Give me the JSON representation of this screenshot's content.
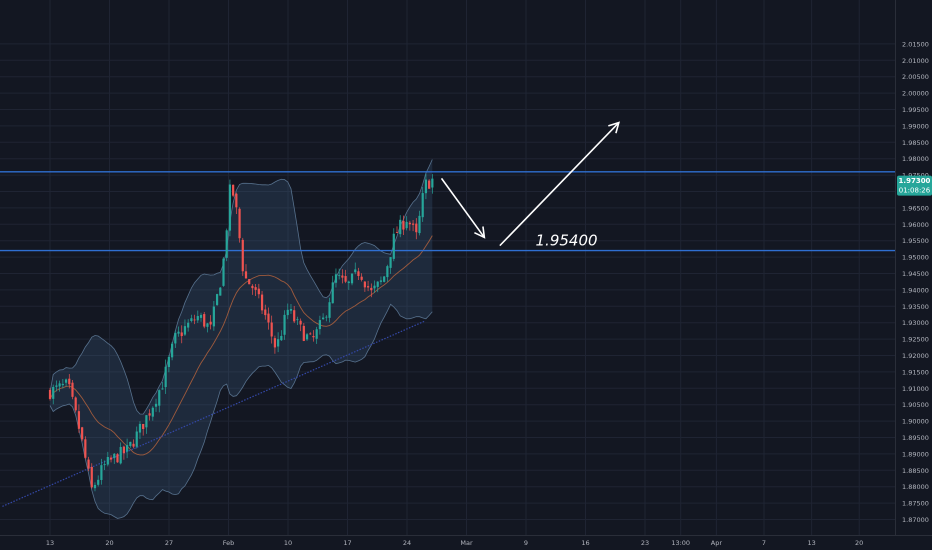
{
  "colors": {
    "background": "#131722",
    "grid": "#1f2433",
    "up": "#26a69a",
    "down": "#ef5350",
    "hline": "#2f6fd1",
    "band_fill": "#3d5f80",
    "band_line": "#57718d",
    "ma": "#b5633c",
    "trend": "#3448a8",
    "arrow": "#ffffff",
    "axis_text": "#b2b5be",
    "price_tag": "#26a69a",
    "price_tag_dark": "#1a8a7f"
  },
  "chart_data": {
    "type": "candlestick",
    "y_ticks": [
      "1.87000",
      "1.87500",
      "1.88000",
      "1.88500",
      "1.89000",
      "1.89500",
      "1.90000",
      "1.90500",
      "1.91000",
      "1.91500",
      "1.92000",
      "1.92500",
      "1.93000",
      "1.93500",
      "1.94000",
      "1.94500",
      "1.95000",
      "1.95500",
      "1.96000",
      "1.96500",
      "1.97000",
      "1.97500",
      "1.98000",
      "1.98500",
      "1.99000",
      "1.99500",
      "2.00000",
      "2.00500",
      "2.01000",
      "2.01500"
    ],
    "y_range": [
      1.865,
      2.018
    ],
    "x_ticks": [
      {
        "label": "13",
        "slot": 0
      },
      {
        "label": "20",
        "slot": 5
      },
      {
        "label": "27",
        "slot": 10
      },
      {
        "label": "Feb",
        "slot": 15
      },
      {
        "label": "10",
        "slot": 20
      },
      {
        "label": "17",
        "slot": 25
      },
      {
        "label": "24",
        "slot": 30
      },
      {
        "label": "Mar",
        "slot": 35
      },
      {
        "label": "9",
        "slot": 40
      },
      {
        "label": "16",
        "slot": 45
      },
      {
        "label": "23",
        "slot": 50
      },
      {
        "label": "13:00",
        "slot": 53
      },
      {
        "label": "Apr",
        "slot": 56
      },
      {
        "label": "7",
        "slot": 60
      },
      {
        "label": "13",
        "slot": 64
      },
      {
        "label": "20",
        "slot": 68
      }
    ],
    "horizontal_lines": [
      1.976,
      1.952
    ],
    "level_label": "1.95400",
    "level_label_value": 1.9536,
    "current_price": "1.97300",
    "countdown": "01:08:26",
    "trend_line": {
      "from": [
        -4,
        1.874
      ],
      "to": [
        31.5,
        1.9305
      ]
    },
    "price_path": [
      [
        0,
        1.909
      ],
      [
        1.5,
        1.911
      ],
      [
        2.5,
        1.897
      ],
      [
        3.5,
        1.879
      ],
      [
        4.5,
        1.886
      ],
      [
        5.5,
        1.889
      ],
      [
        6.5,
        1.891
      ],
      [
        7.5,
        1.897
      ],
      [
        8.5,
        1.904
      ],
      [
        9.5,
        1.912
      ],
      [
        10.5,
        1.925
      ],
      [
        11.5,
        1.929
      ],
      [
        12.5,
        1.932
      ],
      [
        13.5,
        1.928
      ],
      [
        14.5,
        1.946
      ],
      [
        15.2,
        1.973
      ],
      [
        15.7,
        1.963
      ],
      [
        16.3,
        1.944
      ],
      [
        17,
        1.941
      ],
      [
        18,
        1.933
      ],
      [
        19,
        1.922
      ],
      [
        20,
        1.934
      ],
      [
        21,
        1.928
      ],
      [
        22,
        1.924
      ],
      [
        23,
        1.931
      ],
      [
        24,
        1.944
      ],
      [
        25,
        1.941
      ],
      [
        26,
        1.946
      ],
      [
        27,
        1.939
      ],
      [
        28,
        1.943
      ],
      [
        29,
        1.957
      ],
      [
        30,
        1.962
      ],
      [
        30.8,
        1.956
      ],
      [
        31.5,
        1.972
      ],
      [
        32.3,
        1.974
      ]
    ],
    "arrows": [
      {
        "from": [
          32.9,
          1.974
        ],
        "to": [
          36.5,
          1.956
        ]
      },
      {
        "from": [
          37.8,
          1.9535
        ],
        "to": [
          47.8,
          1.991
        ]
      }
    ]
  }
}
